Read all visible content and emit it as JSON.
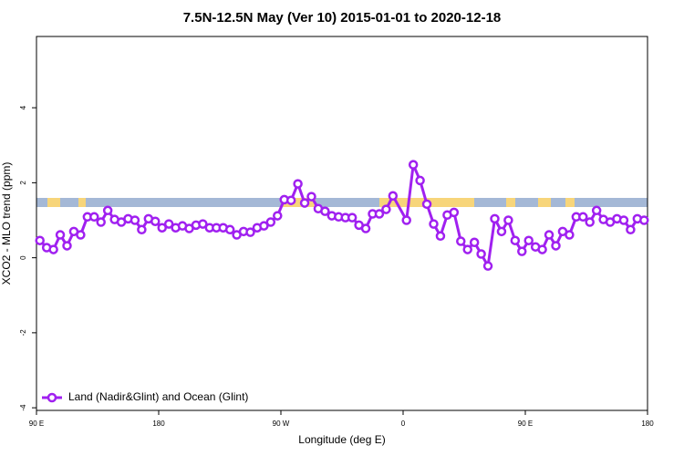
{
  "chart_data": {
    "type": "line",
    "title": "7.5N-12.5N May (Ver 10)   2015-01-01 to 2020-12-18",
    "xlabel": "Longitude (deg E)",
    "ylabel": "XCO2 - MLO trend (ppm)",
    "xlim": [
      90,
      540
    ],
    "ylim": [
      -4.07,
      5.9
    ],
    "xticks": [
      {
        "value": 90,
        "label": "90 E"
      },
      180,
      {
        "value": 270,
        "label": "90 W"
      },
      {
        "value": 360,
        "label": "0"
      },
      {
        "value": 450,
        "label": "90 E"
      },
      {
        "value": 540,
        "label": "180"
      }
    ],
    "yticks": [
      -4,
      -2,
      0,
      2,
      4
    ],
    "legend": "bottom-left",
    "series": [
      {
        "name": "Land (Nadir&Glint) and Ocean (Glint)",
        "color": "#a020f0",
        "x": [
          92.5,
          97.5,
          102.5,
          107.5,
          112.5,
          117.5,
          122.5,
          127.5,
          132.5,
          137.5,
          142.5,
          147.5,
          152.5,
          157.5,
          162.5,
          167.5,
          172.5,
          177.5,
          182.5,
          187.5,
          192.5,
          197.5,
          202.5,
          207.5,
          212.5,
          217.5,
          222.5,
          227.5,
          232.5,
          237.5,
          242.5,
          247.5,
          252.5,
          257.5,
          262.5,
          267.5,
          272.5,
          277.5,
          282.5,
          287.5,
          292.5,
          297.5,
          302.5,
          307.5,
          312.5,
          317.5,
          322.5,
          327.5,
          332.5,
          337.5,
          342.5,
          347.5,
          352.5,
          362.5,
          367.5,
          372.5,
          377.5,
          382.5,
          387.5,
          392.5,
          397.5,
          402.5,
          407.5,
          412.5,
          417.5,
          422.5,
          427.5,
          432.5,
          437.5,
          442.5,
          447.5,
          452.5,
          457.5,
          462.5,
          467.5,
          472.5,
          477.5,
          482.5,
          487.5,
          492.5,
          497.5,
          502.5,
          507.5,
          512.5,
          517.5,
          522.5,
          527.5,
          532.5,
          537.5
        ],
        "values": [
          0.46,
          0.27,
          0.22,
          0.61,
          0.32,
          0.7,
          0.61,
          1.09,
          1.09,
          0.95,
          1.26,
          1.02,
          0.95,
          1.04,
          1.0,
          0.75,
          1.04,
          0.97,
          0.8,
          0.9,
          0.8,
          0.85,
          0.78,
          0.87,
          0.9,
          0.8,
          0.8,
          0.8,
          0.75,
          0.61,
          0.7,
          0.68,
          0.8,
          0.85,
          0.95,
          1.12,
          1.55,
          1.53,
          1.97,
          1.46,
          1.63,
          1.31,
          1.24,
          1.12,
          1.09,
          1.07,
          1.07,
          0.87,
          0.78,
          1.17,
          1.17,
          1.29,
          1.65,
          1.0,
          2.48,
          2.06,
          1.43,
          0.9,
          0.58,
          1.14,
          1.21,
          0.44,
          0.22,
          0.41,
          0.1,
          -0.22,
          1.04,
          0.7,
          1.0,
          0.46,
          0.17,
          0.46,
          0.29,
          0.22,
          0.61,
          0.32,
          0.7,
          0.61,
          1.09,
          1.09,
          0.95,
          1.26,
          1.02,
          0.95,
          1.04,
          1.0,
          0.75,
          1.04,
          1.0
        ]
      }
    ]
  }
}
